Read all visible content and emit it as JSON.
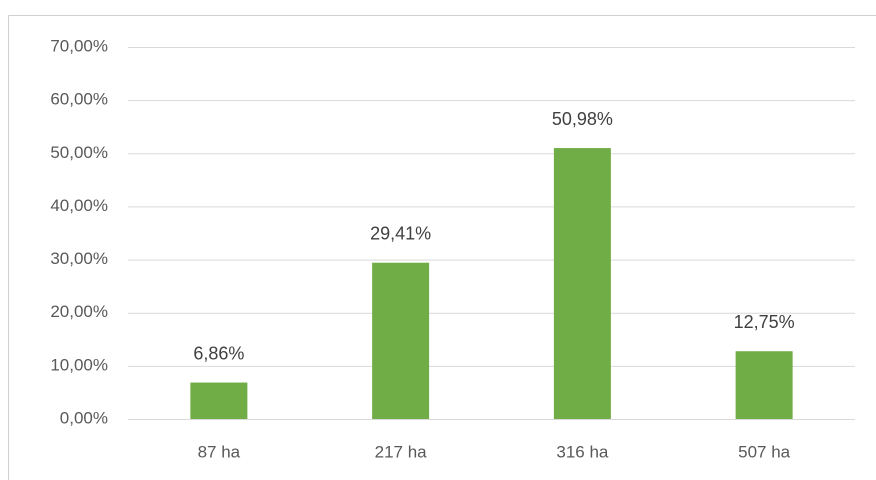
{
  "chart_data": {
    "type": "bar",
    "categories": [
      "87 ha",
      "217 ha",
      "316 ha",
      "507 ha"
    ],
    "values": [
      6.86,
      29.41,
      50.98,
      12.75
    ],
    "value_labels": [
      "6,86%",
      "29,41%",
      "50,98%",
      "12,75%"
    ],
    "color": "#70ad47",
    "ylim": [
      0,
      70
    ],
    "yticks": [
      {
        "value": 0,
        "label": "0,00%"
      },
      {
        "value": 10,
        "label": "10,00%"
      },
      {
        "value": 20,
        "label": "20,00%"
      },
      {
        "value": 30,
        "label": "30,00%"
      },
      {
        "value": 40,
        "label": "40,00%"
      },
      {
        "value": 50,
        "label": "50,00%"
      },
      {
        "value": 60,
        "label": "60,00%"
      },
      {
        "value": 70,
        "label": "70,00%"
      }
    ],
    "grid": true
  }
}
